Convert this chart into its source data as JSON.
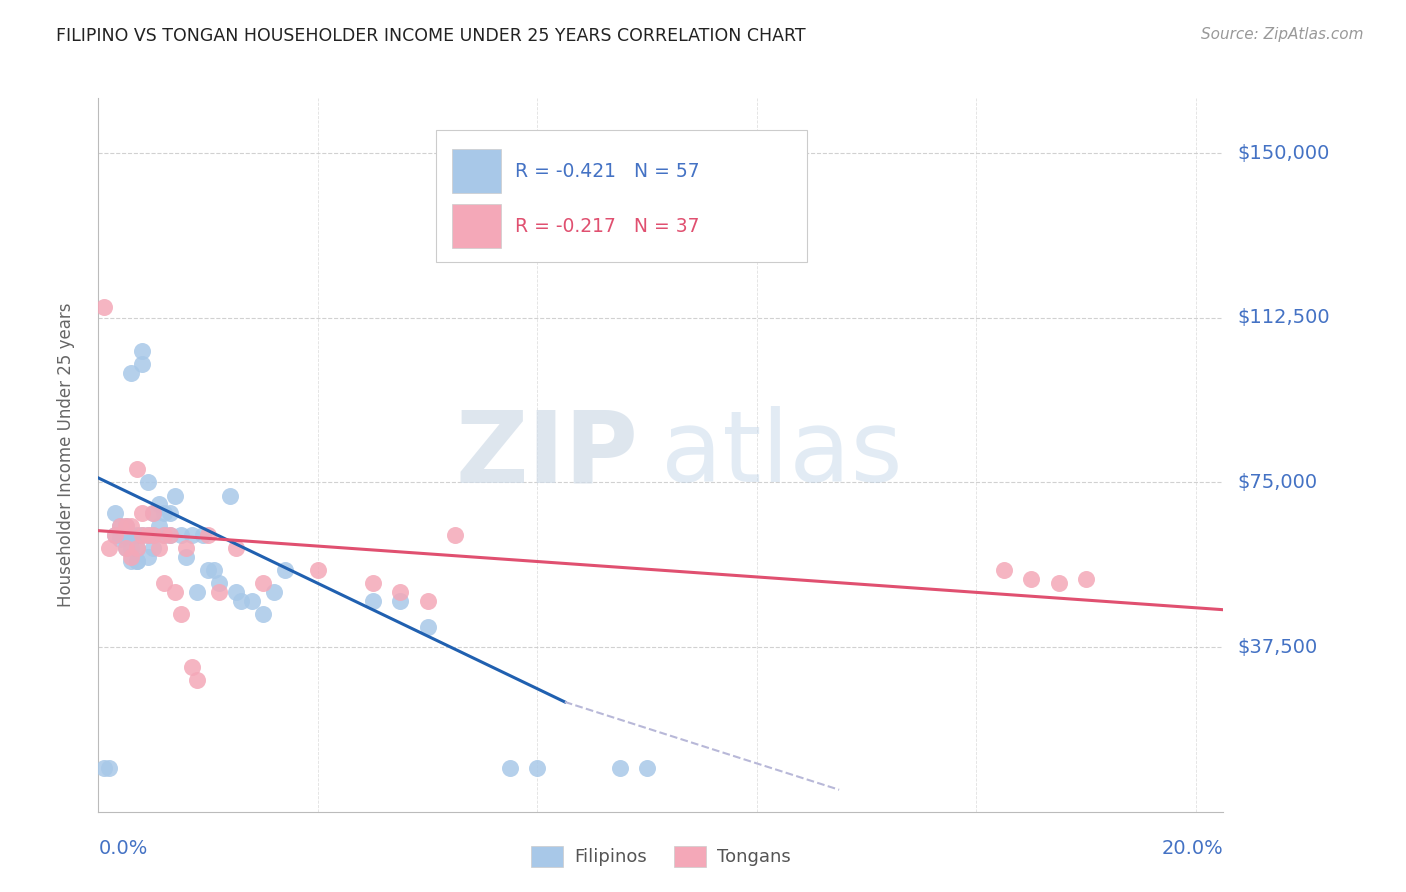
{
  "title": "FILIPINO VS TONGAN HOUSEHOLDER INCOME UNDER 25 YEARS CORRELATION CHART",
  "source": "Source: ZipAtlas.com",
  "ylabel": "Householder Income Under 25 years",
  "ytick_labels": [
    "$150,000",
    "$112,500",
    "$75,000",
    "$37,500"
  ],
  "ytick_values": [
    150000,
    112500,
    75000,
    37500
  ],
  "ylim": [
    0,
    162500
  ],
  "xlim": [
    0.0,
    0.205
  ],
  "filipino_color": "#a8c8e8",
  "tongan_color": "#f4a8b8",
  "trendline_filipino_color": "#2060b0",
  "trendline_tongan_color": "#e05070",
  "trendline_extend_color": "#b8b8d8",
  "legend_r_filipino": "R = -0.421",
  "legend_n_filipino": "N = 57",
  "legend_r_tongan": "R = -0.217",
  "legend_n_tongan": "N = 37",
  "legend_r_color": "#4472c4",
  "legend_r_tongan_color": "#e05070",
  "watermark_zip": "ZIP",
  "watermark_atlas": "atlas",
  "background_color": "#ffffff",
  "title_color": "#222222",
  "axis_label_color": "#4472c4",
  "source_color": "#999999",
  "grid_color": "#cccccc",
  "filipino_x": [
    0.001,
    0.002,
    0.003,
    0.003,
    0.004,
    0.004,
    0.004,
    0.005,
    0.005,
    0.005,
    0.005,
    0.006,
    0.006,
    0.006,
    0.006,
    0.007,
    0.007,
    0.007,
    0.007,
    0.008,
    0.008,
    0.008,
    0.009,
    0.009,
    0.009,
    0.01,
    0.01,
    0.01,
    0.011,
    0.011,
    0.012,
    0.012,
    0.013,
    0.013,
    0.014,
    0.015,
    0.016,
    0.017,
    0.018,
    0.019,
    0.02,
    0.021,
    0.022,
    0.024,
    0.025,
    0.026,
    0.028,
    0.03,
    0.032,
    0.034,
    0.05,
    0.055,
    0.06,
    0.075,
    0.08,
    0.095,
    0.1
  ],
  "filipino_y": [
    10000,
    10000,
    63000,
    68000,
    62000,
    65000,
    63000,
    60000,
    65000,
    63000,
    63000,
    57000,
    60000,
    63000,
    100000,
    57000,
    60000,
    63000,
    57000,
    102000,
    105000,
    63000,
    58000,
    63000,
    75000,
    60000,
    63000,
    68000,
    65000,
    70000,
    63000,
    68000,
    63000,
    68000,
    72000,
    63000,
    58000,
    63000,
    50000,
    63000,
    55000,
    55000,
    52000,
    72000,
    50000,
    48000,
    48000,
    45000,
    50000,
    55000,
    48000,
    48000,
    42000,
    10000,
    10000,
    10000,
    10000
  ],
  "tongan_x": [
    0.001,
    0.002,
    0.003,
    0.004,
    0.005,
    0.005,
    0.006,
    0.006,
    0.007,
    0.007,
    0.008,
    0.008,
    0.009,
    0.01,
    0.01,
    0.011,
    0.012,
    0.012,
    0.013,
    0.014,
    0.015,
    0.016,
    0.017,
    0.018,
    0.02,
    0.022,
    0.025,
    0.03,
    0.04,
    0.05,
    0.055,
    0.06,
    0.065,
    0.165,
    0.17,
    0.175,
    0.18
  ],
  "tongan_y": [
    115000,
    60000,
    63000,
    65000,
    60000,
    65000,
    58000,
    65000,
    60000,
    78000,
    63000,
    68000,
    63000,
    63000,
    68000,
    60000,
    52000,
    63000,
    63000,
    50000,
    45000,
    60000,
    33000,
    30000,
    63000,
    50000,
    60000,
    52000,
    55000,
    52000,
    50000,
    48000,
    63000,
    55000,
    53000,
    52000,
    53000
  ],
  "trendline_fil_x0": 0.0,
  "trendline_fil_x1": 0.085,
  "trendline_fil_y0": 76000,
  "trendline_fil_y1": 25000,
  "trendline_ext_x0": 0.085,
  "trendline_ext_x1": 0.135,
  "trendline_ext_y0": 25000,
  "trendline_ext_y1": 5000,
  "trendline_ton_x0": 0.0,
  "trendline_ton_x1": 0.205,
  "trendline_ton_y0": 64000,
  "trendline_ton_y1": 46000
}
